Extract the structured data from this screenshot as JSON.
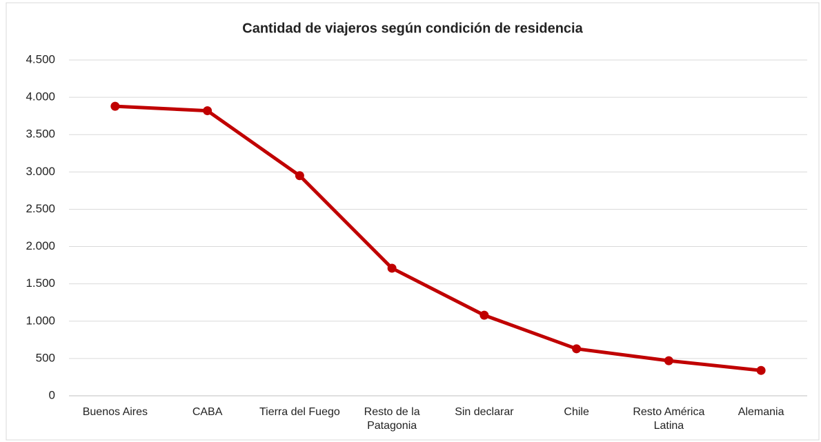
{
  "chart_data": {
    "type": "line",
    "title": "Cantidad de viajeros según condición de residencia",
    "categories": [
      "Buenos Aires",
      "CABA",
      "Tierra del Fuego",
      "Resto de la Patagonia",
      "Sin declarar",
      "Chile",
      "Resto América Latina",
      "Alemania"
    ],
    "series": [
      {
        "name": "Viajeros",
        "color": "#c00000",
        "values": [
          3880,
          3820,
          2950,
          1710,
          1080,
          630,
          470,
          340
        ]
      }
    ],
    "ylim": [
      0,
      4500
    ],
    "yticks": [
      0,
      500,
      {
        "value": 1000,
        "label": "1.000"
      },
      {
        "value": 1500,
        "label": "1.500"
      },
      {
        "value": 2000,
        "label": "2.000"
      },
      {
        "value": 2500,
        "label": "2.500"
      },
      {
        "value": 3000,
        "label": "3.000"
      },
      {
        "value": 3500,
        "label": "3.500"
      },
      {
        "value": 4000,
        "label": "4.000"
      },
      {
        "value": 4500,
        "label": "4.500"
      }
    ],
    "grid": true
  }
}
